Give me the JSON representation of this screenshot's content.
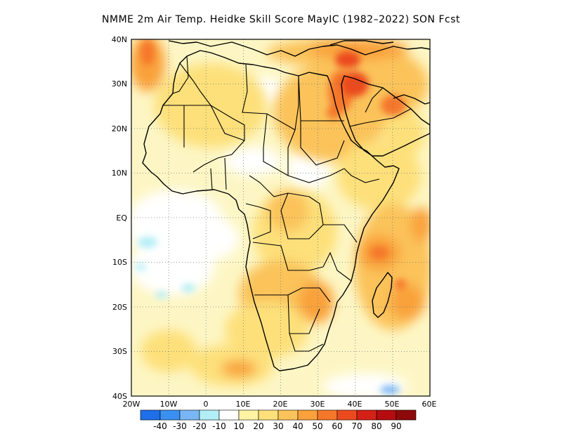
{
  "title": "NMME 2m Air Temp. Heidke Skill Score MayIC (1982–2022) SON Fcst",
  "map": {
    "region": "Africa",
    "lon_range": [
      -20,
      60
    ],
    "lat_range": [
      -40,
      40
    ],
    "grid": "dotted",
    "lon_ticks": [
      "20W",
      "10W",
      "0",
      "10E",
      "20E",
      "30E",
      "40E",
      "50E",
      "60E"
    ],
    "lat_ticks": [
      "40N",
      "30N",
      "20N",
      "10N",
      "EQ",
      "10S",
      "20S",
      "30S",
      "40S"
    ],
    "lat_values": [
      40,
      30,
      20,
      10,
      0,
      -10,
      -20,
      -30,
      -40
    ],
    "lon_values": [
      -20,
      -10,
      0,
      10,
      20,
      30,
      40,
      50,
      60
    ]
  },
  "colorbar": {
    "labels": [
      "-40",
      "-30",
      "-20",
      "-10",
      "10",
      "20",
      "30",
      "40",
      "50",
      "60",
      "70",
      "80",
      "90"
    ],
    "colors": [
      "#1e6fe8",
      "#3a8ff0",
      "#78b6f6",
      "#b2eef6",
      "#ffffff",
      "#fdf3a3",
      "#fde07a",
      "#fbc35a",
      "#f9a13a",
      "#f5772a",
      "#ec4a1e",
      "#d42118",
      "#b50c10",
      "#8e0a0a"
    ]
  }
}
